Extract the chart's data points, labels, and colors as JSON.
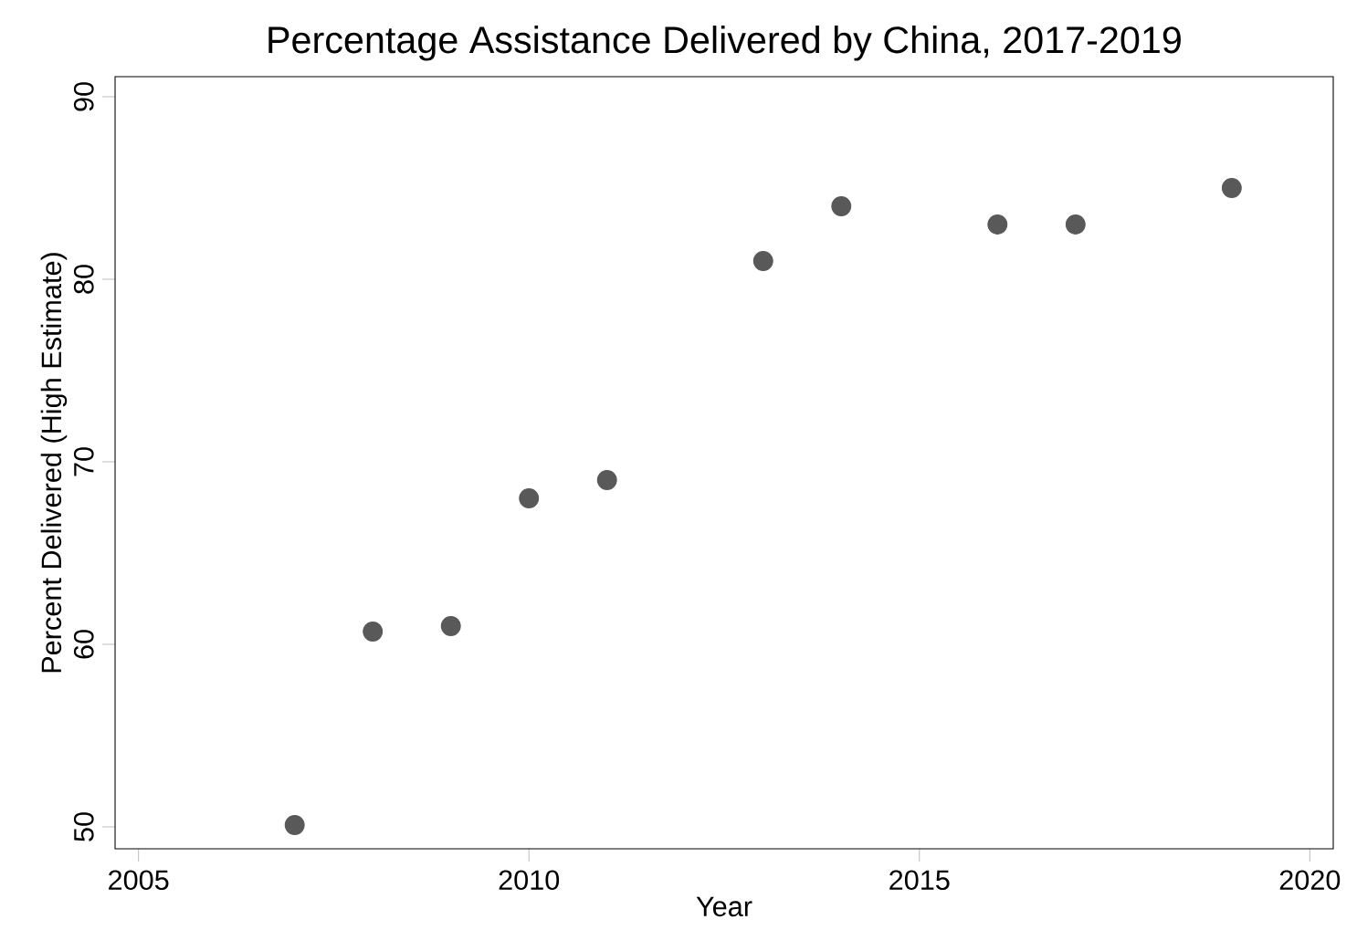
{
  "chart_data": {
    "type": "scatter",
    "title": "Percentage Assistance Delivered by China, 2017-2019",
    "xlabel": "Year",
    "ylabel": "Percent Delivered (High Estimate)",
    "x": [
      2007,
      2008,
      2009,
      2010,
      2011,
      2013,
      2014,
      2016,
      2017,
      2019
    ],
    "series": [
      {
        "color": "#595959",
        "values": [
          50.1,
          60.7,
          61,
          68,
          69,
          81,
          84,
          83,
          83,
          85
        ]
      }
    ],
    "xlim": [
      2004.7,
      2020.3
    ],
    "ylim": [
      48.8,
      91.1
    ],
    "xticks": [
      2005,
      2010,
      2015,
      2020
    ],
    "yticks": [
      50,
      60,
      70,
      80,
      90
    ],
    "grid": false
  }
}
